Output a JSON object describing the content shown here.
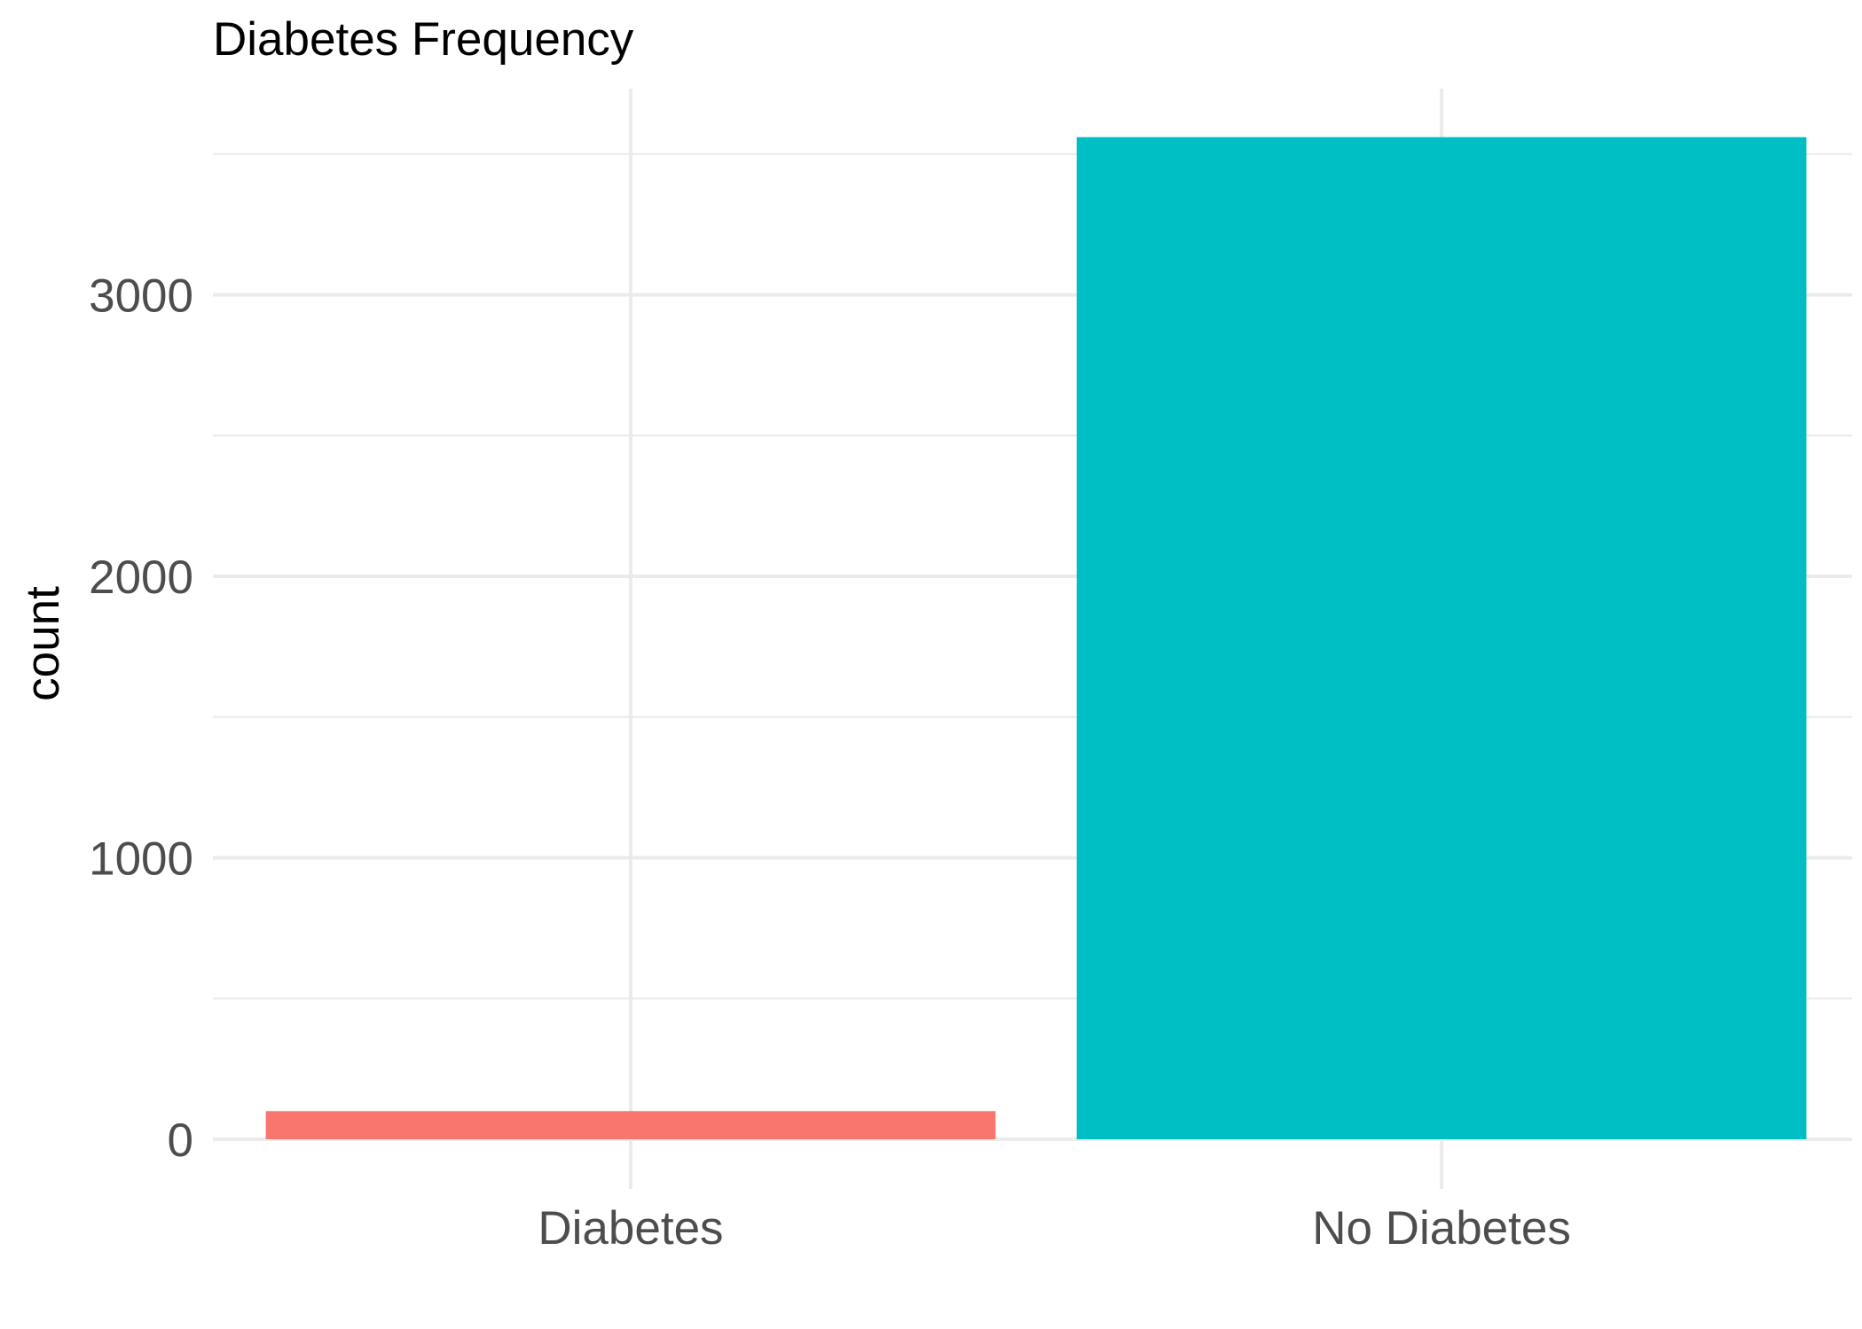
{
  "chart_data": {
    "type": "bar",
    "title": "Diabetes Frequency",
    "xlabel": "",
    "ylabel": "count",
    "categories": [
      "Diabetes",
      "No Diabetes"
    ],
    "values": [
      100,
      3560
    ],
    "colors": [
      "#F8766D",
      "#00BFC4"
    ],
    "ylim": [
      0,
      3740
    ],
    "yticks": [
      0,
      1000,
      2000,
      3000
    ],
    "yticks_minor": [
      500,
      1500,
      2500,
      3500
    ],
    "grid": true,
    "legend": "none"
  }
}
